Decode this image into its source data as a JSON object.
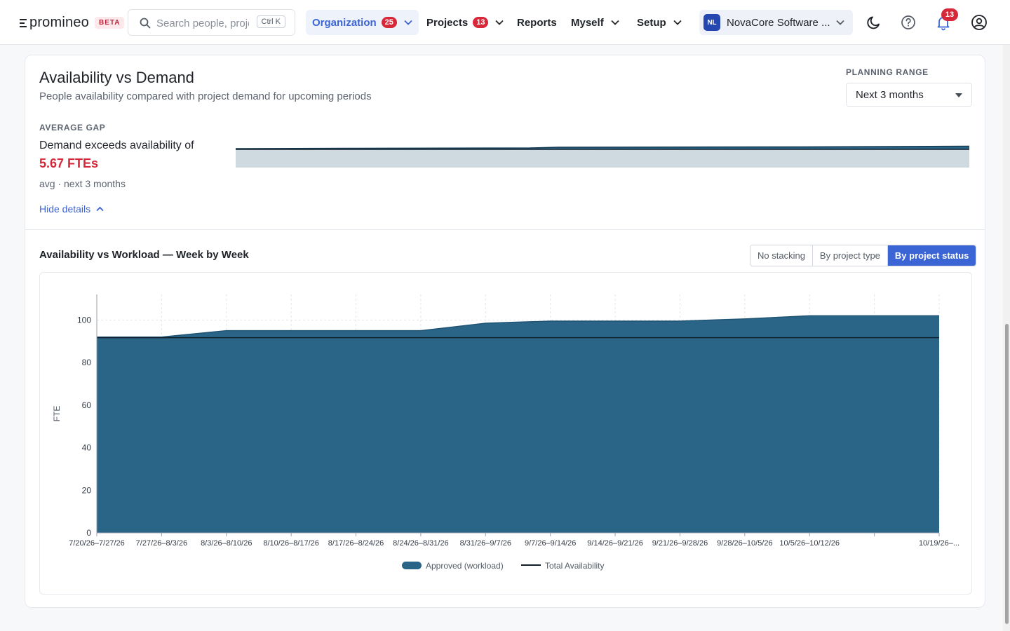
{
  "app": {
    "logo_text": "promineo",
    "beta_label": "BETA"
  },
  "search": {
    "placeholder": "Search people, projects",
    "shortcut": "Ctrl K"
  },
  "nav": {
    "organization": {
      "label": "Organization",
      "badge": "25"
    },
    "projects": {
      "label": "Projects",
      "badge": "13"
    },
    "reports": {
      "label": "Reports"
    },
    "myself": {
      "label": "Myself"
    },
    "setup": {
      "label": "Setup"
    }
  },
  "org_switcher": {
    "initials": "NL",
    "name": "NovaCore Software ..."
  },
  "notifications": {
    "count": "13"
  },
  "icons": {
    "theme": "moon-icon",
    "help": "help-circle-icon",
    "notifications": "bell-icon",
    "account": "user-circle-icon"
  },
  "card": {
    "title": "Availability vs Demand",
    "subtitle": "People availability compared with project demand for upcoming periods",
    "planning_range_label": "PLANNING RANGE",
    "planning_range_value": "Next 3 months",
    "average_gap_label": "AVERAGE GAP",
    "gap_text": "Demand exceeds availability of",
    "gap_value": "5.67 FTEs",
    "gap_note": "avg · next 3 months",
    "hide_details": "Hide details"
  },
  "section": {
    "title": "Availability vs Workload — Week by Week",
    "stacking_options": [
      "No stacking",
      "By project type",
      "By project status"
    ],
    "stacking_selected": "By project status"
  },
  "colors": {
    "accent": "#3b64d4",
    "workload": "#2a6587",
    "availability_line": "#10212e",
    "danger": "#d62839"
  },
  "chart_data": {
    "type": "area",
    "ylabel": "FTE",
    "xlabel": "",
    "ylim": [
      0,
      112
    ],
    "yticks": [
      0,
      20,
      40,
      60,
      80,
      100
    ],
    "categories": [
      "7/20/26–7/27/26",
      "7/27/26–8/3/26",
      "8/3/26–8/10/26",
      "8/10/26–8/17/26",
      "8/17/26–8/24/26",
      "8/24/26–8/31/26",
      "8/31/26–9/7/26",
      "9/7/26–9/14/26",
      "9/14/26–9/21/26",
      "9/21/26–9/28/26",
      "9/28/26–10/5/26",
      "10/5/26–10/12/26",
      "",
      "10/19/26–..."
    ],
    "series": [
      {
        "name": "Approved (workload)",
        "kind": "area",
        "values": [
          92,
          92,
          95,
          95,
          95,
          95,
          98.5,
          99.5,
          99.5,
          99.5,
          100.5,
          102,
          102,
          102
        ]
      },
      {
        "name": "Total Availability",
        "kind": "line",
        "values": [
          91.7,
          91.7,
          91.7,
          91.7,
          91.7,
          91.7,
          91.7,
          91.7,
          91.7,
          91.7,
          91.7,
          91.7,
          91.7,
          91.7
        ]
      }
    ],
    "grid": true,
    "legend": "bottom-center"
  }
}
